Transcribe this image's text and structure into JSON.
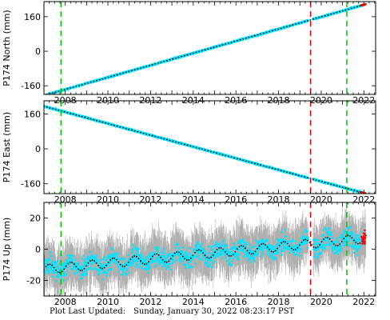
{
  "footer": {
    "label": "Plot Last Updated:",
    "timestamp": "Sunday, January 30, 2022 08:23:17 PST"
  },
  "colors": {
    "error_bars": "#b0b0b0",
    "scatter": "#00e5ff",
    "model": "#000000",
    "recent": "#ff0000",
    "green_line": "#00c000",
    "red_line": "#e00000"
  },
  "chart_data": [
    {
      "type": "scatter",
      "ylabel": "P174 North (mm)",
      "xlim": [
        2007.0,
        2022.55
      ],
      "ylim": [
        -200,
        230
      ],
      "xticks": [
        2008,
        2010,
        2012,
        2014,
        2016,
        2018,
        2020,
        2022
      ],
      "yticks": [
        -160,
        0,
        160
      ],
      "series": [
        {
          "values_start": [
            2007.0,
            -205
          ],
          "values_end": [
            2022.1,
            218
          ]
        }
      ],
      "vertical_lines": [
        {
          "x": 2007.8,
          "style": "dashed",
          "color": "green"
        },
        {
          "x": 2019.5,
          "style": "dashed",
          "color": "red"
        },
        {
          "x": 2021.2,
          "style": "dashed",
          "color": "green"
        }
      ]
    },
    {
      "type": "scatter",
      "ylabel": "P174 East (mm)",
      "xlim": [
        2007.0,
        2022.55
      ],
      "ylim": [
        -205,
        220
      ],
      "xticks": [
        2008,
        2010,
        2012,
        2014,
        2016,
        2018,
        2020,
        2022
      ],
      "yticks": [
        -160,
        0,
        160
      ],
      "series": [
        {
          "values_start": [
            2007.0,
            195
          ],
          "values_end": [
            2022.1,
            -205
          ]
        }
      ],
      "vertical_lines": [
        {
          "x": 2007.8,
          "style": "dashed",
          "color": "green"
        },
        {
          "x": 2019.5,
          "style": "dashed",
          "color": "red"
        },
        {
          "x": 2021.2,
          "style": "dashed",
          "color": "green"
        }
      ]
    },
    {
      "type": "scatter",
      "ylabel": "P174 Up (mm)",
      "xlim": [
        2007.0,
        2022.55
      ],
      "ylim": [
        -30,
        30
      ],
      "xticks": [
        2008,
        2010,
        2012,
        2014,
        2016,
        2018,
        2020,
        2022
      ],
      "yticks": [
        -20,
        0,
        20
      ],
      "series": [
        {
          "values_start": [
            2007.0,
            -13
          ],
          "values_end": [
            2022.1,
            7
          ],
          "seasonal_amplitude": 3
        }
      ],
      "vertical_lines": [
        {
          "x": 2007.8,
          "style": "dashed",
          "color": "green"
        },
        {
          "x": 2019.5,
          "style": "dashed",
          "color": "red"
        },
        {
          "x": 2021.2,
          "style": "dashed",
          "color": "green"
        }
      ]
    }
  ]
}
